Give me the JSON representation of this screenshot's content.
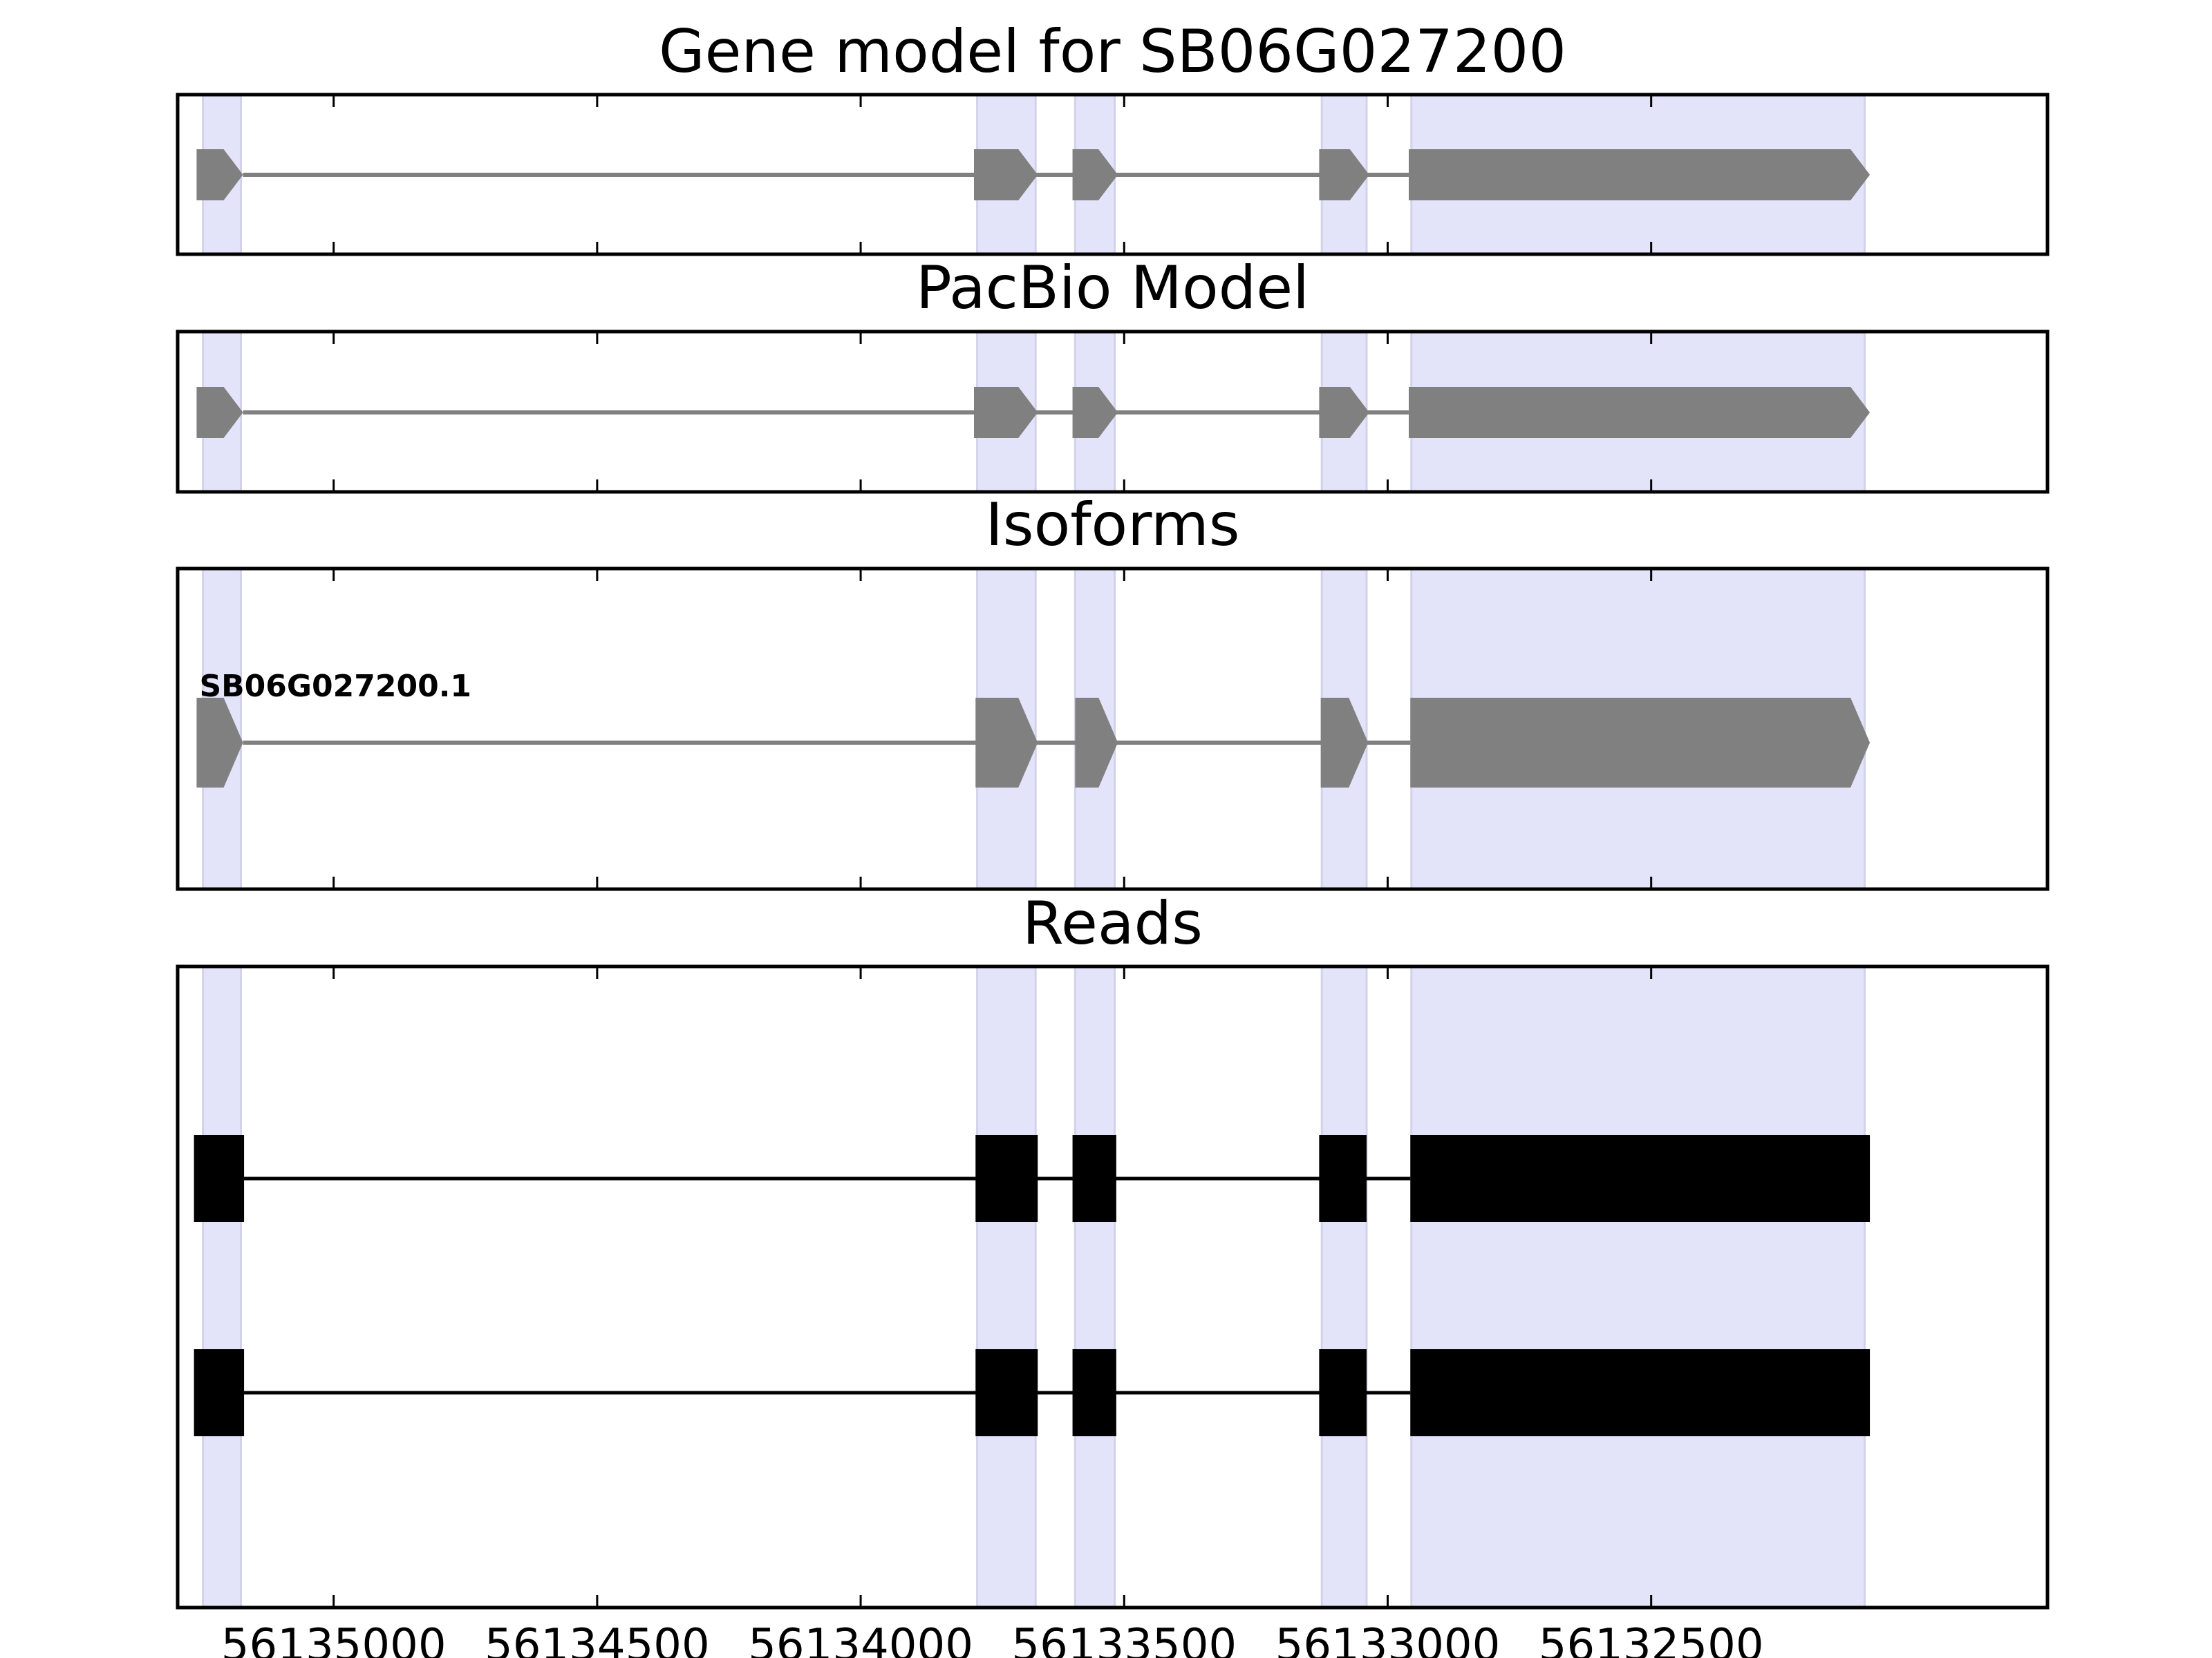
{
  "chart_data": {
    "type": "gene-structure",
    "orientation": "reverse-strand",
    "xlim": [
      56135296,
      56131748
    ],
    "x_ticks": [
      56135000,
      56134500,
      56134000,
      56133500,
      56133000,
      56132500
    ],
    "x_tick_labels": [
      "56135000",
      "56134500",
      "56134000",
      "56133500",
      "56133000",
      "56132500"
    ],
    "highlight_color": "#e3e3fa",
    "exon_color": "#808080",
    "read_color": "#000000",
    "exons": [
      {
        "start": 56135248,
        "end": 56135176
      },
      {
        "start": 56133779,
        "end": 56133668
      },
      {
        "start": 56133593,
        "end": 56133518
      },
      {
        "start": 56133125,
        "end": 56133040
      },
      {
        "start": 56132955,
        "end": 56132095
      }
    ],
    "panels": [
      {
        "title": "Gene model for SB06G027200",
        "tracks": [
          {
            "kind": "model",
            "exons": [
              {
                "start": 56135260,
                "end": 56135172
              },
              {
                "start": 56133785,
                "end": 56133664
              },
              {
                "start": 56133598,
                "end": 56133512
              },
              {
                "start": 56133130,
                "end": 56133035
              },
              {
                "start": 56132960,
                "end": 56132085
              }
            ]
          }
        ]
      },
      {
        "title": "PacBio Model",
        "tracks": [
          {
            "kind": "model",
            "exons": [
              {
                "start": 56135260,
                "end": 56135172
              },
              {
                "start": 56133785,
                "end": 56133664
              },
              {
                "start": 56133598,
                "end": 56133512
              },
              {
                "start": 56133130,
                "end": 56133035
              },
              {
                "start": 56132960,
                "end": 56132085
              }
            ]
          }
        ]
      },
      {
        "title": "Isoforms",
        "tracks": [
          {
            "kind": "isoform",
            "label": "SB06G027200.1",
            "exons": [
              {
                "start": 56135260,
                "end": 56135172
              },
              {
                "start": 56133782,
                "end": 56133664
              },
              {
                "start": 56133593,
                "end": 56133512
              },
              {
                "start": 56133127,
                "end": 56133037
              },
              {
                "start": 56132957,
                "end": 56132085
              }
            ]
          }
        ]
      },
      {
        "title": "Reads",
        "tracks": [
          {
            "kind": "read",
            "exons": [
              {
                "start": 56135265,
                "end": 56135170
              },
              {
                "start": 56133782,
                "end": 56133664
              },
              {
                "start": 56133598,
                "end": 56133515
              },
              {
                "start": 56133130,
                "end": 56133040
              },
              {
                "start": 56132957,
                "end": 56132085
              }
            ]
          },
          {
            "kind": "read",
            "exons": [
              {
                "start": 56135265,
                "end": 56135170
              },
              {
                "start": 56133782,
                "end": 56133664
              },
              {
                "start": 56133598,
                "end": 56133515
              },
              {
                "start": 56133130,
                "end": 56133040
              },
              {
                "start": 56132957,
                "end": 56132085
              }
            ]
          }
        ]
      }
    ]
  }
}
